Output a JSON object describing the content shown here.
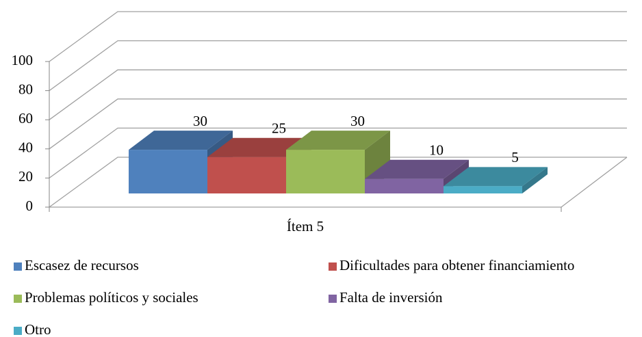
{
  "chart_data": {
    "type": "bar3d",
    "categories": [
      "Ítem 5"
    ],
    "series": [
      {
        "name": "Escasez de recursos",
        "color": "#4f81bd",
        "values": [
          30
        ]
      },
      {
        "name": "Dificultades para obtener financiamiento",
        "color": "#c0504d",
        "values": [
          25
        ]
      },
      {
        "name": "Problemas políticos y sociales",
        "color": "#9bbb59",
        "values": [
          30
        ]
      },
      {
        "name": "Falta de inversión",
        "color": "#8064a2",
        "values": [
          10
        ]
      },
      {
        "name": "Otro",
        "color": "#4bacc6",
        "values": [
          5
        ]
      }
    ],
    "ylim": [
      0,
      100
    ],
    "yticks": [
      0,
      20,
      40,
      60,
      80,
      100
    ],
    "grid": true,
    "legend": "bottom"
  }
}
